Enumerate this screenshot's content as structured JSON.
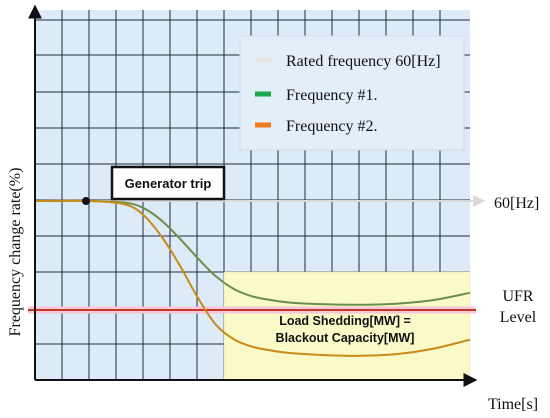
{
  "chart_data": {
    "type": "line",
    "xlabel": "Time[s]",
    "ylabel": "Frequency change rate(%)",
    "grid": true,
    "legend_position": "top-right",
    "legend": [
      {
        "label": "Rated frequency 60[Hz]",
        "color": "#e6e6e6"
      },
      {
        "label": "Frequency #1.",
        "color": "#1fa64a"
      },
      {
        "label": "Frequency #2.",
        "color": "#f07a1e"
      }
    ],
    "colors": {
      "plot_background": "#dcebf7",
      "grid": "#1f2a44",
      "load_shedding_region": "#fafac8",
      "ufr_line": "#c0392b",
      "rated_line": "#d9d9d9"
    },
    "series": [
      {
        "name": "Frequency #1.",
        "x": [
          0,
          1.5,
          2.5,
          3.0,
          3.5,
          4.0,
          4.5,
          5.0,
          5.5,
          6.0,
          6.5,
          7.0,
          8.0,
          9.0,
          10.0,
          11.0,
          12.0
        ],
        "y": [
          0,
          0,
          -0.05,
          -0.2,
          -0.55,
          -1.05,
          -1.6,
          -2.1,
          -2.45,
          -2.65,
          -2.75,
          -2.82,
          -2.87,
          -2.88,
          -2.85,
          -2.75,
          -2.55
        ]
      },
      {
        "name": "Frequency #2.",
        "x": [
          0,
          1.5,
          2.5,
          3.0,
          3.5,
          4.0,
          4.5,
          5.0,
          5.5,
          6.0,
          6.5,
          7.0,
          8.0,
          9.0,
          10.0,
          11.0,
          12.0
        ],
        "y": [
          0,
          0,
          -0.1,
          -0.4,
          -1.0,
          -1.8,
          -2.7,
          -3.45,
          -3.85,
          -4.05,
          -4.15,
          -4.22,
          -4.28,
          -4.3,
          -4.25,
          -4.1,
          -3.85
        ]
      }
    ],
    "rated_frequency_label": "60[Hz]",
    "ufr_label_line1": "UFR",
    "ufr_label_line2": "Level",
    "annotations": {
      "generator_trip": "Generator trip",
      "load_shedding_line1": "Load Shedding[MW] =",
      "load_shedding_line2": "Blackout Capacity[MW]"
    }
  }
}
